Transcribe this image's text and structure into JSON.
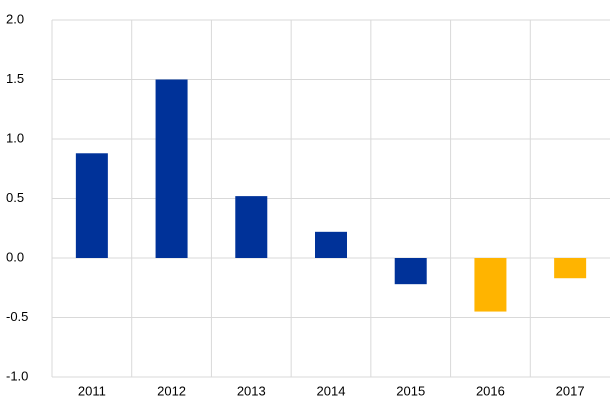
{
  "chart_data": {
    "type": "bar",
    "categories": [
      "2011",
      "2012",
      "2013",
      "2014",
      "2015",
      "2016",
      "2017"
    ],
    "values": [
      0.88,
      1.5,
      0.52,
      0.22,
      -0.22,
      -0.45,
      -0.17
    ],
    "colors": [
      "#003299",
      "#003299",
      "#003299",
      "#003299",
      "#003299",
      "#ffb400",
      "#ffb400"
    ],
    "ylim": [
      -1,
      2
    ],
    "yticks": [
      {
        "value": -1,
        "label": "-1.0"
      },
      -0.5,
      {
        "value": 0,
        "label": "0.0"
      },
      0.5,
      {
        "value": 1,
        "label": "1.0"
      },
      1.5,
      {
        "value": 2,
        "label": "2.0"
      }
    ],
    "grid": true
  }
}
